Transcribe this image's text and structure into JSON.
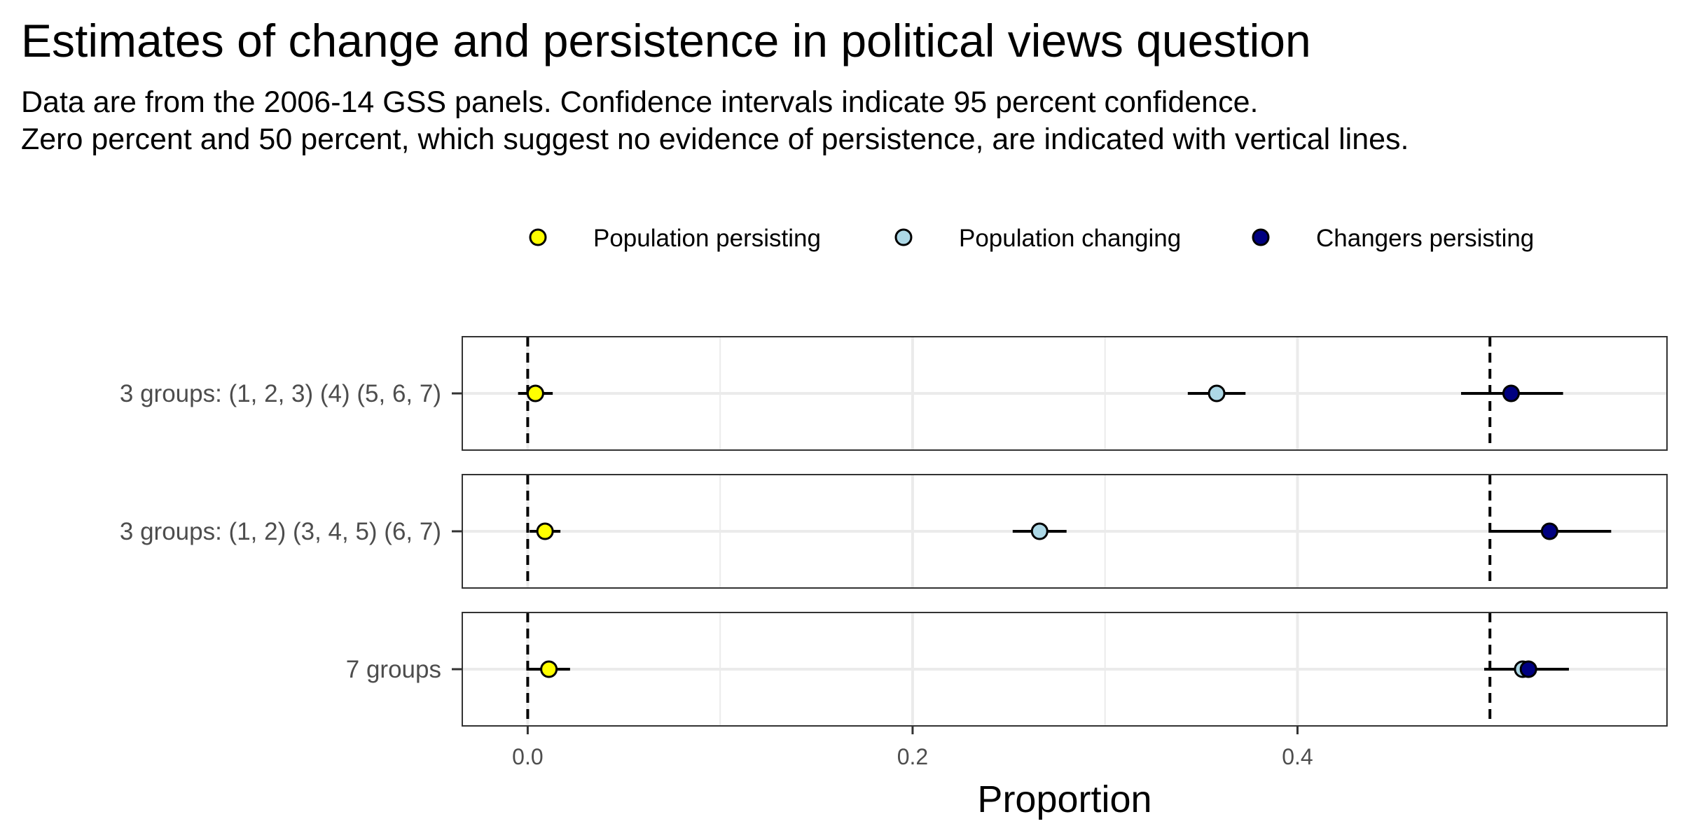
{
  "chart_data": {
    "type": "scatter",
    "title": "Estimates of change and persistence in political views question",
    "subtitle": [
      "Data are from the 2006-14 GSS panels. Confidence intervals indicate 95 percent confidence.",
      "Zero percent and 50 percent, which suggest no evidence of persistence, are indicated with vertical lines."
    ],
    "xlabel": "Proportion",
    "xlim": [
      -0.034,
      0.592
    ],
    "x_ticks": [
      {
        "value": 0.0,
        "label": "0.0"
      },
      {
        "value": 0.2,
        "label": "0.2"
      },
      {
        "value": 0.4,
        "label": "0.4"
      }
    ],
    "reference_lines": [
      0.0,
      0.5
    ],
    "grid": true,
    "legend_position": "top",
    "categories": [
      "3 groups: (1, 2, 3) (4) (5, 6, 7)",
      "3 groups: (1, 2) (3, 4, 5) (6, 7)",
      "7 groups"
    ],
    "series": [
      {
        "name": "Population persisting",
        "color": "#ffff00",
        "values": [
          0.004,
          0.009,
          0.011
        ],
        "ci_low": [
          -0.005,
          0.001,
          0.0
        ],
        "ci_high": [
          0.013,
          0.017,
          0.022
        ]
      },
      {
        "name": "Population changing",
        "color": "#add8e6",
        "values": [
          0.358,
          0.266,
          0.517
        ],
        "ci_low": [
          0.343,
          0.252,
          0.497
        ],
        "ci_high": [
          0.373,
          0.28,
          0.541
        ]
      },
      {
        "name": "Changers persisting",
        "color": "#000080",
        "values": [
          0.511,
          0.531,
          0.52
        ],
        "ci_low": [
          0.485,
          0.5,
          0.5
        ],
        "ci_high": [
          0.538,
          0.563,
          0.541
        ]
      }
    ]
  }
}
